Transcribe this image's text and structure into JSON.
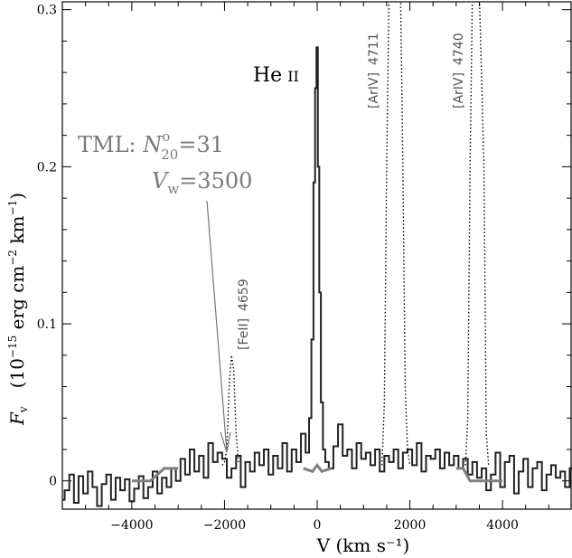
{
  "chart_data": {
    "type": "line",
    "title": "",
    "xlabel": "V (km s⁻¹)",
    "ylabel_symbol": "F",
    "ylabel_subscript": "v",
    "ylabel_units_pre": "(10",
    "ylabel_units_exp1": "−15",
    "ylabel_units_mid": " erg cm",
    "ylabel_units_exp2": "−2",
    "ylabel_units_post": " km",
    "ylabel_units_exp3": "−1",
    "ylabel_units_close": ")",
    "xlim": [
      -5500,
      5500
    ],
    "ylim": [
      -0.018,
      0.305
    ],
    "x_ticks": [
      -4000,
      -2000,
      0,
      2000,
      4000
    ],
    "x_tick_labels": [
      "−4000",
      "−2000",
      "0",
      "2000",
      "4000"
    ],
    "y_ticks": [
      0,
      0.1,
      0.2,
      0.3
    ],
    "y_tick_labels": [
      "0",
      "0.1",
      "0.2",
      "0.3"
    ],
    "series": [
      {
        "style": "solid-black",
        "description": "observed spectrum",
        "x": [
          -5500,
          -5400,
          -5300,
          -5200,
          -5100,
          -5000,
          -4900,
          -4800,
          -4700,
          -4600,
          -4500,
          -4400,
          -4300,
          -4200,
          -4100,
          -4000,
          -3900,
          -3800,
          -3700,
          -3600,
          -3500,
          -3400,
          -3300,
          -3200,
          -3100,
          -3000,
          -2900,
          -2800,
          -2700,
          -2600,
          -2500,
          -2400,
          -2300,
          -2200,
          -2100,
          -2000,
          -1900,
          -1800,
          -1700,
          -1600,
          -1500,
          -1400,
          -1300,
          -1200,
          -1100,
          -1000,
          -900,
          -800,
          -700,
          -600,
          -500,
          -400,
          -300,
          -200,
          -150,
          -100,
          -60,
          -30,
          0,
          30,
          60,
          100,
          150,
          200,
          300,
          400,
          500,
          600,
          700,
          800,
          900,
          1000,
          1100,
          1200,
          1300,
          1400,
          1500,
          1600,
          1700,
          1800,
          1900,
          2000,
          2100,
          2200,
          2300,
          2400,
          2500,
          2600,
          2700,
          2800,
          2900,
          3000,
          3100,
          3200,
          3300,
          3400,
          3500,
          3600,
          3700,
          3800,
          3900,
          4000,
          4100,
          4200,
          4300,
          4400,
          4500,
          4600,
          4700,
          4800,
          4900,
          5000,
          5100,
          5200,
          5300,
          5400,
          5500
        ],
        "y": [
          -0.012,
          -0.006,
          0.004,
          -0.014,
          0.003,
          -0.008,
          0.006,
          -0.004,
          -0.016,
          -0.002,
          0.004,
          -0.012,
          0.002,
          -0.006,
          0.001,
          -0.013,
          -0.005,
          0.003,
          -0.011,
          -0.004,
          0.006,
          -0.008,
          0.002,
          -0.004,
          0.008,
          0.0,
          0.014,
          0.004,
          0.02,
          0.006,
          0.016,
          0.002,
          0.024,
          0.012,
          0.018,
          0.014,
          0.002,
          0.008,
          0.016,
          -0.004,
          0.012,
          0.006,
          0.018,
          0.01,
          0.02,
          0.004,
          0.016,
          0.008,
          0.024,
          0.006,
          0.02,
          0.012,
          0.03,
          0.018,
          0.04,
          0.09,
          0.19,
          0.25,
          0.276,
          0.2,
          0.12,
          0.05,
          0.02,
          0.012,
          0.008,
          0.022,
          0.036,
          0.016,
          0.02,
          0.008,
          0.024,
          0.014,
          0.018,
          0.01,
          0.02,
          0.006,
          0.016,
          0.012,
          0.02,
          0.008,
          0.018,
          0.02,
          0.01,
          0.024,
          0.006,
          0.016,
          0.014,
          0.02,
          0.008,
          0.018,
          0.01,
          0.016,
          0.008,
          0.014,
          0.004,
          0.012,
          0.002,
          0.008,
          -0.006,
          0.004,
          0.018,
          -0.004,
          0.012,
          0.016,
          -0.008,
          0.006,
          0.014,
          -0.004,
          0.008,
          0.012,
          -0.006,
          0.004,
          0.01,
          0.002,
          0.006,
          -0.004,
          0.008
        ]
      },
      {
        "style": "dotted-black",
        "description": "emission line overlay",
        "x": [
          -2050,
          -2000,
          -1950,
          -1900,
          -1850,
          -1800,
          -1750,
          -1700,
          1400,
          1450,
          1500,
          1550,
          1600,
          1700,
          1800,
          1850,
          1900,
          1950,
          2000,
          3200,
          3250,
          3300,
          3350,
          3400,
          3500,
          3600,
          3650,
          3700
        ],
        "y": [
          0.01,
          0.012,
          0.02,
          0.06,
          0.08,
          0.07,
          0.03,
          0.012,
          0.01,
          0.05,
          0.2,
          0.31,
          0.31,
          0.31,
          0.31,
          0.2,
          0.06,
          0.02,
          0.01,
          0.01,
          0.04,
          0.2,
          0.31,
          0.31,
          0.31,
          0.2,
          0.03,
          0.01
        ]
      },
      {
        "style": "thick-gray",
        "description": "TML model",
        "x": [
          -4000,
          -3600,
          -3300,
          -3000,
          -2000,
          -1000,
          -300,
          -100,
          0,
          100,
          300,
          1000,
          2000,
          3000,
          3150,
          3300,
          3500,
          4000
        ],
        "y": [
          0.0,
          0.0,
          0.008,
          0.008,
          0.008,
          0.008,
          0.008,
          0.006,
          0.01,
          0.006,
          0.008,
          0.008,
          0.008,
          0.008,
          0.008,
          0.0,
          0.0,
          0.0
        ]
      }
    ],
    "annotations": {
      "heii_main": "He",
      "heii_roman": "II",
      "arivleft_bracket": "[ArIV]",
      "arivleft_wave": "4711",
      "arivright_bracket": "[ArIV]",
      "arivright_wave": "4740",
      "feii_bracket": "[FeII]",
      "feii_wave": "4659",
      "tml_line1_prefix": "TML: ",
      "tml_line1_symbol": "N",
      "tml_line1_super": "o",
      "tml_line1_sub": "20",
      "tml_line1_value": "=31",
      "tml_line2_symbol": "V",
      "tml_line2_sub": "w",
      "tml_line2_value": "=3500"
    },
    "grid": false,
    "legend": "none"
  }
}
